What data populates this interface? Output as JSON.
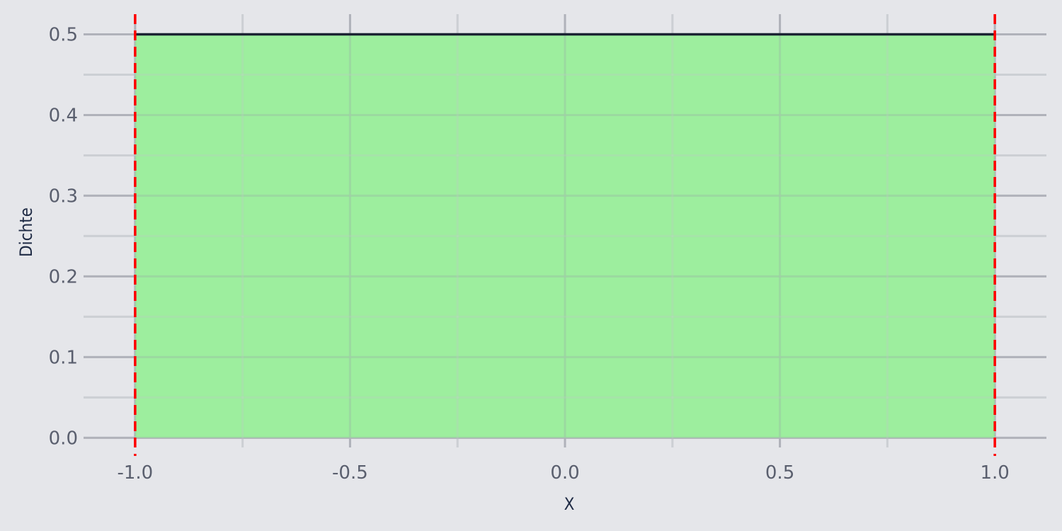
{
  "chart_data": {
    "type": "area",
    "title": "",
    "xlabel": "X",
    "ylabel": "Dichte",
    "xlim": [
      -1.12,
      1.12
    ],
    "ylim": [
      -0.012,
      0.525
    ],
    "x_ticks": [
      -1.0,
      -0.5,
      0.0,
      0.5,
      1.0
    ],
    "x_tick_labels": [
      "-1.0",
      "-0.5",
      "0.0",
      "0.5",
      "1.0"
    ],
    "x_minor_ticks": [
      -0.75,
      -0.25,
      0.25,
      0.75
    ],
    "y_ticks": [
      0.0,
      0.1,
      0.2,
      0.3,
      0.4,
      0.5
    ],
    "y_tick_labels": [
      "0.0",
      "0.1",
      "0.2",
      "0.3",
      "0.4",
      "0.5"
    ],
    "y_minor_ticks": [
      0.05,
      0.15,
      0.25,
      0.35,
      0.45
    ],
    "grid": true,
    "legend": "none",
    "series": [
      {
        "x": [
          -1.0,
          1.0
        ],
        "y": [
          0.5,
          0.5
        ],
        "line_color": "#1b2433",
        "fill_color": "#90ee90"
      }
    ],
    "vlines": [
      {
        "x": -1.0,
        "color": "#ff0000",
        "style": "dashed"
      },
      {
        "x": 1.0,
        "color": "#ff0000",
        "style": "dashed"
      }
    ],
    "colors": {
      "background": "#e5e6ea",
      "grid_major": "#b0b2ba",
      "grid_minor": "#cdcfd5"
    }
  }
}
